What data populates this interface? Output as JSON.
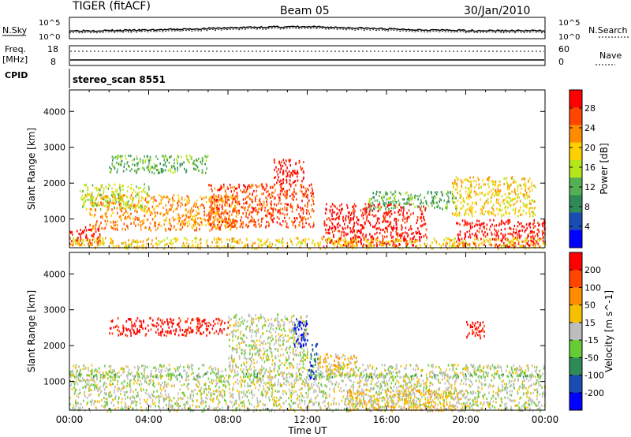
{
  "header": {
    "radar": "TIGER (fitACF)",
    "beam": "Beam 05",
    "date": "30/Jan/2010"
  },
  "status_panels": {
    "nsky_label": "N.Sky",
    "nsearch_label": "N.Search",
    "left_ticks": [
      "10^5",
      "10^0"
    ],
    "right_ticks": [
      "10^5",
      "10^0"
    ],
    "freq_label_line1": "Freq.",
    "freq_label_line2": "[MHz]",
    "freq_ticks": [
      "18",
      "8"
    ],
    "nave_label": "Nave",
    "nave_ticks": [
      "60",
      "0"
    ],
    "cpid_label": "CPID",
    "cpid_value": "stereo_scan 8551"
  },
  "colors": {
    "power": [
      "#0000ff",
      "#1a4db3",
      "#2e8b57",
      "#55b055",
      "#b5e61d",
      "#ffd000",
      "#ff8c00",
      "#ff4500",
      "#ff0000"
    ],
    "velocity": [
      "#0000ff",
      "#1a4db3",
      "#2e8b57",
      "#66cc33",
      "#bdbdbd",
      "#f5c000",
      "#ff8c00",
      "#ff4500",
      "#ff0000"
    ]
  },
  "chart_data": [
    {
      "type": "heatmap",
      "title": "",
      "xlabel": "Time UT",
      "ylabel": "Slant Range [km]",
      "x_ticks": [
        "00:00",
        "04:00",
        "08:00",
        "12:00",
        "16:00",
        "20:00",
        "00:00"
      ],
      "y_ticks": [
        "1000",
        "2000",
        "3000",
        "4000"
      ],
      "ylim": [
        200,
        4600
      ],
      "colorbar": {
        "label": "Power [dB]",
        "ticks": [
          "28",
          "24",
          "20",
          "16",
          "12",
          "8",
          "4"
        ],
        "range": [
          0,
          32
        ]
      },
      "regions": [
        {
          "t": [
            0.0,
            1.6
          ],
          "r": [
            300,
            800
          ],
          "level": 8
        },
        {
          "t": [
            1.0,
            8.5
          ],
          "r": [
            700,
            1700
          ],
          "level": 6
        },
        {
          "t": [
            0.5,
            4.0
          ],
          "r": [
            1300,
            2000
          ],
          "level": 4
        },
        {
          "t": [
            2.0,
            7.0
          ],
          "r": [
            2300,
            2800
          ],
          "level": 3
        },
        {
          "t": [
            7.0,
            12.3
          ],
          "r": [
            800,
            2000
          ],
          "level": 7
        },
        {
          "t": [
            10.3,
            11.8
          ],
          "r": [
            2000,
            2700
          ],
          "level": 8
        },
        {
          "t": [
            12.8,
            18.0
          ],
          "r": [
            250,
            1450
          ],
          "level": 8
        },
        {
          "t": [
            15.0,
            19.5
          ],
          "r": [
            1300,
            1800
          ],
          "level": 3
        },
        {
          "t": [
            19.5,
            24.0
          ],
          "r": [
            250,
            1000
          ],
          "level": 8
        },
        {
          "t": [
            19.3,
            23.5
          ],
          "r": [
            1100,
            2200
          ],
          "level": 5
        },
        {
          "t": [
            0.0,
            24.0
          ],
          "r": [
            200,
            500
          ],
          "level": 5
        }
      ]
    },
    {
      "type": "heatmap",
      "title": "",
      "xlabel": "Time UT",
      "ylabel": "Slant Range [km]",
      "x_ticks": [
        "00:00",
        "04:00",
        "08:00",
        "12:00",
        "16:00",
        "20:00",
        "00:00"
      ],
      "y_ticks": [
        "1000",
        "2000",
        "3000",
        "4000"
      ],
      "ylim": [
        200,
        4600
      ],
      "colorbar": {
        "label": "Velocity [m s^-1]",
        "ticks": [
          "200",
          "100",
          "50",
          "15",
          "-15",
          "-50",
          "-100",
          "-200"
        ],
        "range": [
          -250,
          250
        ]
      },
      "regions": [
        {
          "t": [
            0.0,
            24.0
          ],
          "r": [
            200,
            1500
          ],
          "level": 4
        },
        {
          "t": [
            2.0,
            8.0
          ],
          "r": [
            2300,
            2800
          ],
          "level": 8
        },
        {
          "t": [
            8.0,
            12.0
          ],
          "r": [
            1500,
            2900
          ],
          "level": 4
        },
        {
          "t": [
            11.3,
            12.0
          ],
          "r": [
            2000,
            2800
          ],
          "level": 0
        },
        {
          "t": [
            12.0,
            12.5
          ],
          "r": [
            1100,
            2100
          ],
          "level": 1
        },
        {
          "t": [
            12.5,
            14.5
          ],
          "r": [
            1200,
            1800
          ],
          "level": 5
        },
        {
          "t": [
            20.0,
            21.0
          ],
          "r": [
            2200,
            2700
          ],
          "level": 8
        },
        {
          "t": [
            14.0,
            20.0
          ],
          "r": [
            200,
            800
          ],
          "level": 5
        },
        {
          "t": [
            0.0,
            24.0
          ],
          "r": [
            1150,
            1250
          ],
          "level": 3
        }
      ]
    }
  ]
}
